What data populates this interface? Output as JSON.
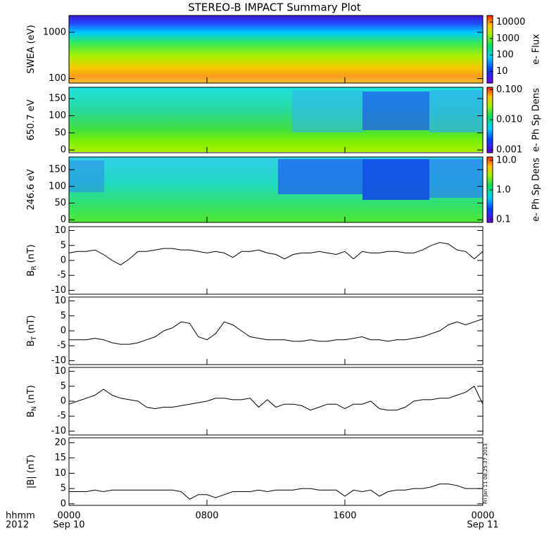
{
  "title": "STEREO-B IMPACT Summary Plot",
  "footer": {
    "left": [
      "hhmm",
      "2012"
    ],
    "timestamp": "Fri Jan 11 08:25:37 2013",
    "xlim": [
      0,
      24
    ],
    "xticks": [
      {
        "value": 0,
        "label": "0000"
      },
      {
        "value": 8,
        "label": "0800"
      },
      {
        "value": 16,
        "label": "1600"
      },
      {
        "value": 24,
        "label": "0000"
      }
    ],
    "date_labels": [
      {
        "value": 0,
        "label": "Sep 10"
      },
      {
        "value": 24,
        "label": "Sep 11"
      }
    ]
  },
  "chart_data": [
    {
      "type": "heatmap",
      "ylabel": "SWEA (eV)",
      "yscale": "log",
      "ylim": [
        80,
        2300
      ],
      "yticks": [
        100,
        1000
      ],
      "zlabel": "e- Flux",
      "zscale": "log",
      "zlim": [
        2,
        25000
      ],
      "zticks": [
        10,
        100,
        1000,
        10000
      ]
    },
    {
      "type": "heatmap",
      "ylabel": "650.7 eV",
      "ylim": [
        -8,
        183
      ],
      "yticks": [
        0,
        50,
        100,
        150
      ],
      "zlabel": "e- Ph Sp Dens",
      "zscale": "log",
      "zlim": [
        0.0008,
        0.12
      ],
      "zticks": [
        {
          "value": 0.001,
          "label": "0.001"
        },
        {
          "value": 0.01,
          "label": "0.010"
        },
        {
          "value": 0.1,
          "label": "0.100"
        }
      ]
    },
    {
      "type": "heatmap",
      "ylabel": "246.6 eV",
      "ylim": [
        -8,
        188
      ],
      "yticks": [
        0,
        50,
        100,
        150
      ],
      "zlabel": "e- Ph Sp Dens",
      "zscale": "log",
      "zlim": [
        0.08,
        13
      ],
      "zticks": [
        {
          "value": 0.1,
          "label": "0.1"
        },
        {
          "value": 1,
          "label": "1.0"
        },
        {
          "value": 10,
          "label": "10.0"
        }
      ]
    },
    {
      "type": "line",
      "ylabel": "B",
      "ylabel_sub": "R",
      "ylabel_unit": "(nT)",
      "color": "#000000",
      "ylim": [
        -11.3,
        11.3
      ],
      "yticks": [
        -10,
        -5,
        0,
        5,
        10
      ],
      "xlim": [
        0,
        24
      ],
      "x": [
        0,
        0.5,
        1,
        1.5,
        2,
        2.5,
        3,
        3.5,
        4,
        4.5,
        5,
        5.5,
        6,
        6.5,
        7,
        7.5,
        8,
        8.5,
        9,
        9.5,
        10,
        10.5,
        11,
        11.5,
        12,
        12.5,
        13,
        13.5,
        14,
        14.5,
        15,
        15.5,
        16,
        16.5,
        17,
        17.5,
        18,
        18.5,
        19,
        19.5,
        20,
        20.5,
        21,
        21.5,
        22,
        22.5,
        23,
        23.5,
        24
      ],
      "values": [
        2.5,
        3,
        3,
        3.5,
        2,
        0,
        -1.5,
        0.5,
        3,
        3,
        3.5,
        4,
        4,
        3.5,
        3.5,
        3,
        2.5,
        3,
        2.5,
        1,
        3,
        3,
        3.5,
        2.5,
        2,
        0.5,
        2,
        2.5,
        2.5,
        3,
        2.5,
        2,
        3,
        0.5,
        3,
        2.5,
        2.5,
        3,
        3,
        2.5,
        2.5,
        3.5,
        5,
        6,
        5.5,
        3.5,
        3,
        0.5,
        3
      ]
    },
    {
      "type": "line",
      "ylabel": "B",
      "ylabel_sub": "T",
      "ylabel_unit": "(nT)",
      "color": "#000000",
      "ylim": [
        -11.3,
        11.3
      ],
      "yticks": [
        -10,
        -5,
        0,
        5,
        10
      ],
      "xlim": [
        0,
        24
      ],
      "x": [
        0,
        0.5,
        1,
        1.5,
        2,
        2.5,
        3,
        3.5,
        4,
        4.5,
        5,
        5.5,
        6,
        6.5,
        7,
        7.5,
        8,
        8.5,
        9,
        9.5,
        10,
        10.5,
        11,
        11.5,
        12,
        12.5,
        13,
        13.5,
        14,
        14.5,
        15,
        15.5,
        16,
        16.5,
        17,
        17.5,
        18,
        18.5,
        19,
        19.5,
        20,
        20.5,
        21,
        21.5,
        22,
        22.5,
        23,
        23.5,
        24
      ],
      "values": [
        -3,
        -3,
        -3,
        -2.5,
        -3,
        -4,
        -4.5,
        -4.5,
        -4,
        -3,
        -2,
        0,
        1,
        3,
        2.5,
        -2,
        -3,
        -1,
        3,
        2,
        0,
        -2,
        -2.5,
        -3,
        -3,
        -3,
        -3.5,
        -3.5,
        -3,
        -3.5,
        -3.5,
        -3,
        -3,
        -2.5,
        -2,
        -3,
        -3,
        -3.5,
        -3,
        -3,
        -2.5,
        -2,
        -1,
        0,
        2,
        3,
        2,
        3,
        4
      ]
    },
    {
      "type": "line",
      "ylabel": "B",
      "ylabel_sub": "N",
      "ylabel_unit": "(nT)",
      "color": "#000000",
      "ylim": [
        -11.3,
        11.3
      ],
      "yticks": [
        -10,
        -5,
        0,
        5,
        10
      ],
      "xlim": [
        0,
        24
      ],
      "x": [
        0,
        0.5,
        1,
        1.5,
        2,
        2.5,
        3,
        3.5,
        4,
        4.5,
        5,
        5.5,
        6,
        6.5,
        7,
        7.5,
        8,
        8.5,
        9,
        9.5,
        10,
        10.5,
        11,
        11.5,
        12,
        12.5,
        13,
        13.5,
        14,
        14.5,
        15,
        15.5,
        16,
        16.5,
        17,
        17.5,
        18,
        18.5,
        19,
        19.5,
        20,
        20.5,
        21,
        21.5,
        22,
        22.5,
        23,
        23.5,
        24
      ],
      "values": [
        -1,
        0,
        1,
        2,
        4,
        2,
        1,
        0.5,
        0,
        -2,
        -2.5,
        -2,
        -2,
        -1.5,
        -1,
        -0.5,
        0,
        1,
        1,
        0.5,
        0.5,
        1,
        -2,
        0.5,
        -2,
        -1,
        -1,
        -1.5,
        -3,
        -2,
        -1,
        -1,
        -2.5,
        -1,
        -1,
        0,
        -2.5,
        -3,
        -3,
        -2,
        0,
        0.5,
        0.5,
        1,
        1,
        2,
        3,
        5,
        -1
      ]
    },
    {
      "type": "line",
      "ylabel": "|B| (nT)",
      "color": "#000000",
      "ylim": [
        -0.5,
        21.6
      ],
      "yticks": [
        0,
        5,
        10,
        15,
        20
      ],
      "xlim": [
        0,
        24
      ],
      "x": [
        0,
        0.5,
        1,
        1.5,
        2,
        2.5,
        3,
        3.5,
        4,
        4.5,
        5,
        5.5,
        6,
        6.5,
        7,
        7.5,
        8,
        8.5,
        9,
        9.5,
        10,
        10.5,
        11,
        11.5,
        12,
        12.5,
        13,
        13.5,
        14,
        14.5,
        15,
        15.5,
        16,
        16.5,
        17,
        17.5,
        18,
        18.5,
        19,
        19.5,
        20,
        20.5,
        21,
        21.5,
        22,
        22.5,
        23,
        23.5,
        24
      ],
      "values": [
        4,
        4,
        4,
        4.5,
        4,
        4.5,
        4.5,
        4.5,
        4.5,
        4.5,
        4.5,
        4.5,
        4.5,
        4,
        1.5,
        3,
        3,
        2,
        3,
        4,
        4,
        4,
        4.5,
        4,
        4.5,
        4.5,
        4.5,
        5,
        5,
        4.5,
        4.5,
        4.5,
        2.5,
        4.5,
        4,
        4.5,
        2.5,
        4,
        4.5,
        4.5,
        5,
        5,
        5.5,
        6.5,
        6.5,
        6,
        5,
        5,
        5
      ]
    }
  ]
}
